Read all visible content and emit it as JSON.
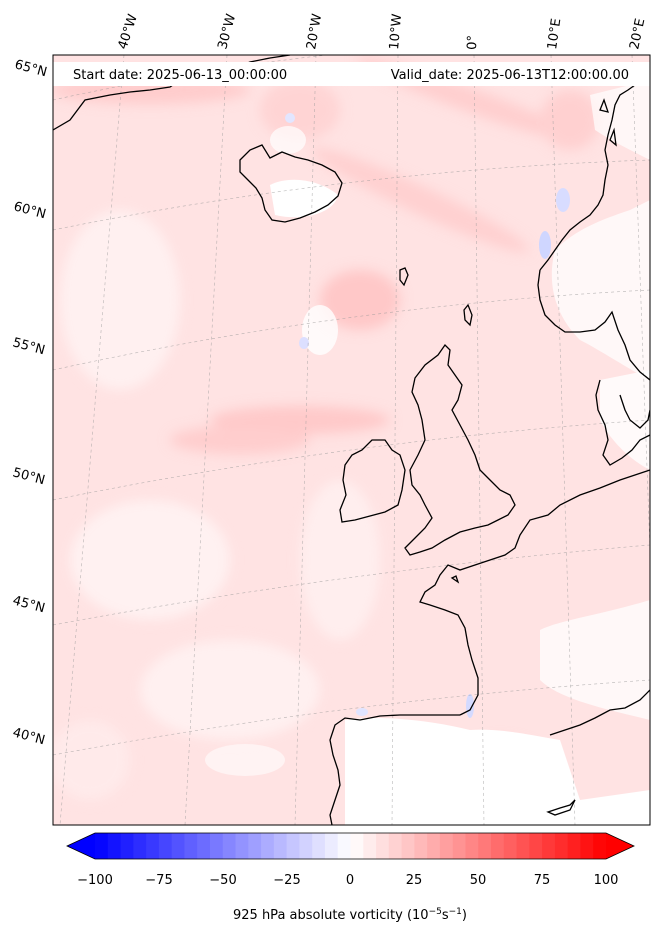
{
  "header": {
    "start_label": "Start date: 2025-06-13_00:00:00",
    "valid_label": "Valid_date: 2025-06-13T12:00:00.00"
  },
  "longitude_labels": [
    "40°W",
    "30°W",
    "20°W",
    "10°W",
    "0°",
    "10°E",
    "20°E"
  ],
  "latitude_labels": [
    "65°N",
    "60°N",
    "55°N",
    "50°N",
    "45°N",
    "40°N"
  ],
  "colorbar": {
    "title_prefix": "925 hPa absolute vorticity (10",
    "title_exp1": "−5",
    "title_mid": "s",
    "title_exp2": "−1",
    "title_suffix": ")",
    "vmin": -100,
    "vmax": 100,
    "ticks": [
      "−100",
      "−75",
      "−50",
      "−25",
      "0",
      "25",
      "50",
      "75",
      "100"
    ],
    "low_color": "#0000ff",
    "mid_color": "#ffffff",
    "high_color": "#ff0000",
    "extend": "both"
  },
  "colors": {
    "background_field": "#ffe2e2",
    "coastline": "#000000",
    "gridline": "#b0b0b0"
  }
}
